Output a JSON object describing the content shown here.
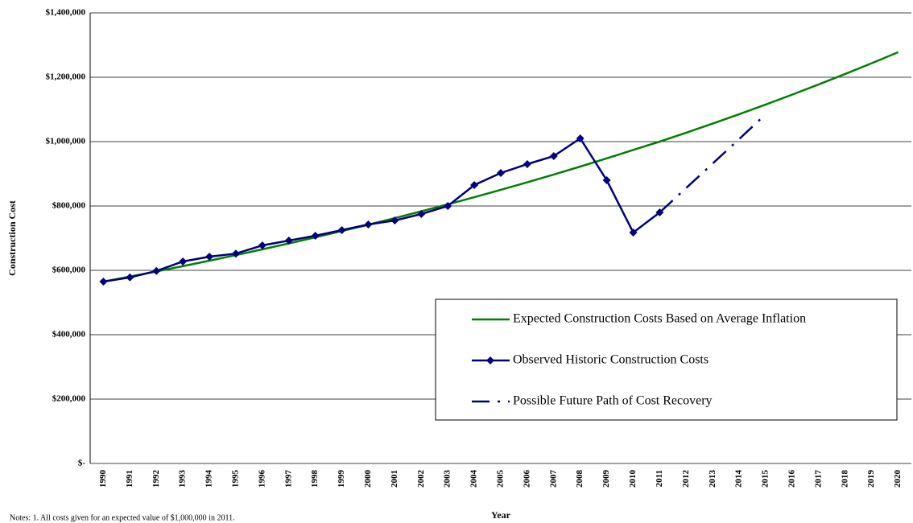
{
  "chart_data": {
    "type": "line",
    "x_label": "Year",
    "y_label": "Construction Cost",
    "notes": "Notes:  1. All costs given for an expected value of $1,000,000 in 2011.",
    "categories": [
      "1990",
      "1991",
      "1992",
      "1993",
      "1994",
      "1995",
      "1996",
      "1997",
      "1998",
      "1999",
      "2000",
      "2001",
      "2002",
      "2003",
      "2004",
      "2005",
      "2006",
      "2007",
      "2008",
      "2009",
      "2010",
      "2011",
      "2012",
      "2013",
      "2014",
      "2015",
      "2016",
      "2017",
      "2018",
      "2019",
      "2020"
    ],
    "series": [
      {
        "name": "Expected Construction Costs Based on Average Inflation",
        "color": "#008000",
        "style": "solid",
        "marker": "none",
        "values": [
          565000,
          580600,
          596600,
          613100,
          630000,
          647400,
          665300,
          683700,
          702600,
          722000,
          741900,
          762400,
          783400,
          805100,
          827300,
          850100,
          873600,
          897700,
          922500,
          948000,
          974200,
          1000000,
          1027600,
          1056000,
          1085200,
          1115100,
          1145900,
          1177600,
          1210100,
          1243500,
          1277800
        ]
      },
      {
        "name": "Observed Historic Construction Costs",
        "color": "#000080",
        "style": "solid",
        "marker": "diamond",
        "values": [
          565000,
          578000,
          598000,
          627500,
          642500,
          652000,
          677500,
          692500,
          707500,
          725000,
          742500,
          755000,
          775000,
          800000,
          865000,
          902500,
          930000,
          955000,
          1010000,
          880000,
          717500,
          780000,
          null,
          null,
          null,
          null,
          null,
          null,
          null,
          null,
          null
        ]
      },
      {
        "name": "Possible Future Path of Cost Recovery",
        "color": "#000080",
        "style": "dashdot",
        "marker": "none",
        "values": [
          null,
          null,
          null,
          null,
          null,
          null,
          null,
          null,
          null,
          null,
          null,
          null,
          null,
          null,
          null,
          null,
          null,
          null,
          null,
          null,
          null,
          780000,
          856000,
          932000,
          1008000,
          1085000,
          null,
          null,
          null,
          null,
          null
        ]
      }
    ],
    "ylim": [
      0,
      1400000
    ],
    "yticks": [
      {
        "value": 0,
        "label": "$-"
      },
      {
        "value": 200000,
        "label": "$200,000"
      },
      {
        "value": 400000,
        "label": "$400,000"
      },
      {
        "value": 600000,
        "label": "$600,000"
      },
      {
        "value": 800000,
        "label": "$800,000"
      },
      {
        "value": 1000000,
        "label": "$1,000,000"
      },
      {
        "value": 1200000,
        "label": "$1,200,000"
      },
      {
        "value": 1400000,
        "label": "$1,400,000"
      }
    ],
    "grid": true,
    "legend": "right"
  }
}
